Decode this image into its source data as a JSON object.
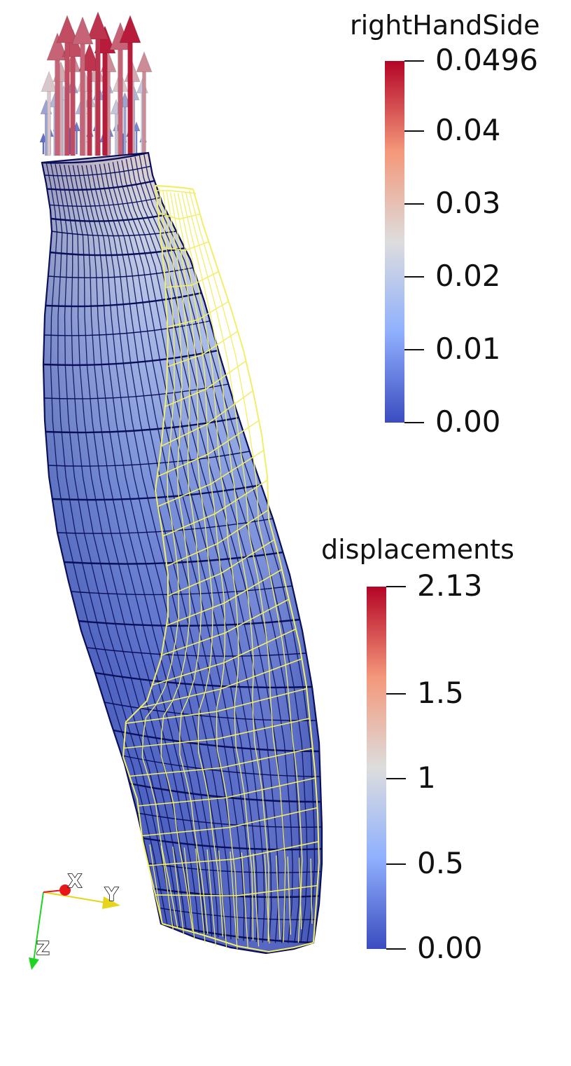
{
  "legends": [
    {
      "title": "rightHandSide",
      "ticks": [
        {
          "label": "0.0496",
          "value": 0.0496
        },
        {
          "label": "0.04",
          "value": 0.04
        },
        {
          "label": "0.03",
          "value": 0.03
        },
        {
          "label": "0.02",
          "value": 0.02
        },
        {
          "label": "0.01",
          "value": 0.01
        },
        {
          "label": "0.00",
          "value": 0.0
        }
      ],
      "range": [
        0.0,
        0.0496
      ]
    },
    {
      "title": "displacements",
      "ticks": [
        {
          "label": "2.13",
          "value": 2.13
        },
        {
          "label": "1.5",
          "value": 1.5
        },
        {
          "label": "1",
          "value": 1
        },
        {
          "label": "0.5",
          "value": 0.5
        },
        {
          "label": "0.00",
          "value": 0.0
        }
      ],
      "range": [
        0.0,
        2.13
      ]
    }
  ],
  "colormap": {
    "low": "#3b4cc0",
    "mid": "#dddddd",
    "high": "#b40426"
  },
  "colors": {
    "mesh_edges": "#0a0f5a",
    "wireframe": "#f2ee6a",
    "surface_dark": "#3e52b8",
    "surface_light": "#b9cbf0"
  },
  "axes_triad": {
    "x": "X",
    "y": "Y",
    "z": "Z",
    "x_color": "#e8161b",
    "y_color": "#e6d51a",
    "z_color": "#1fd41f"
  }
}
